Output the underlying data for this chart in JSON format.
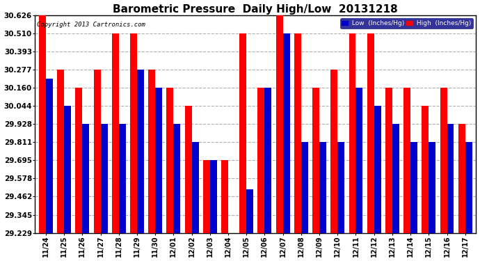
{
  "title": "Barometric Pressure  Daily High/Low  20131218",
  "copyright": "Copyright 2013 Cartronics.com",
  "categories": [
    "11/24",
    "11/25",
    "11/26",
    "11/27",
    "11/28",
    "11/29",
    "11/30",
    "12/01",
    "12/02",
    "12/03",
    "12/04",
    "12/05",
    "12/06",
    "12/07",
    "12/08",
    "12/09",
    "12/10",
    "12/11",
    "12/12",
    "12/13",
    "12/14",
    "12/15",
    "12/16",
    "12/17"
  ],
  "high_values": [
    30.626,
    30.277,
    30.16,
    30.277,
    30.51,
    30.51,
    30.277,
    30.16,
    30.044,
    29.695,
    29.695,
    30.51,
    30.16,
    30.626,
    30.51,
    30.16,
    30.277,
    30.51,
    30.51,
    30.16,
    30.16,
    30.044,
    30.16,
    29.928
  ],
  "low_values": [
    30.22,
    30.044,
    29.928,
    29.928,
    29.928,
    30.277,
    30.16,
    29.928,
    29.811,
    29.695,
    29.229,
    29.51,
    30.16,
    30.51,
    29.811,
    29.811,
    29.811,
    30.16,
    30.044,
    29.928,
    29.811,
    29.811,
    29.928,
    29.811
  ],
  "high_color": "#ff0000",
  "low_color": "#0000cc",
  "bg_color": "#ffffff",
  "plot_bg_color": "#ffffff",
  "grid_color": "#b0b0b0",
  "title_fontsize": 11,
  "ylabel_values": [
    29.229,
    29.345,
    29.462,
    29.578,
    29.695,
    29.811,
    29.928,
    30.044,
    30.16,
    30.277,
    30.393,
    30.51,
    30.626
  ],
  "ylim_min": 29.229,
  "ylim_max": 30.626,
  "bar_width": 0.38
}
